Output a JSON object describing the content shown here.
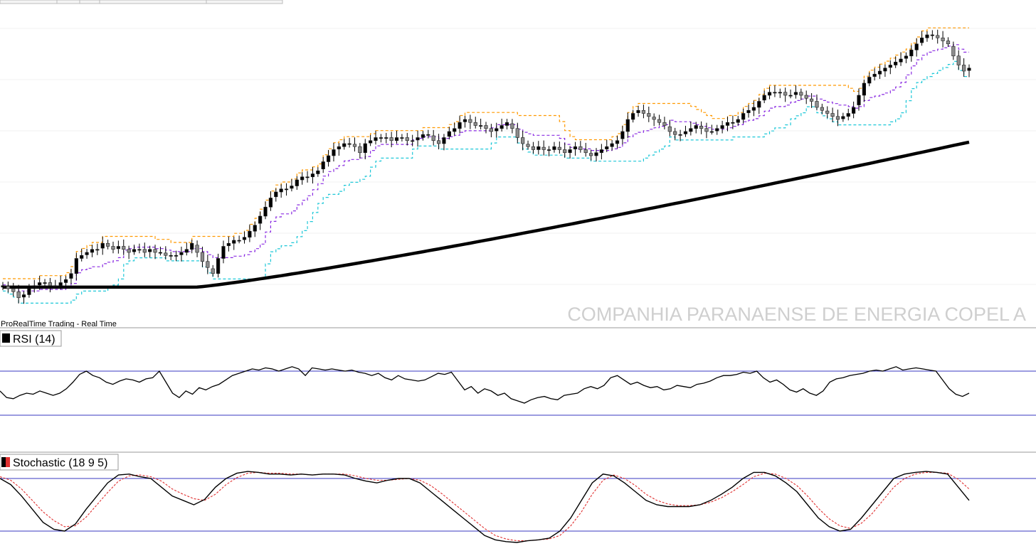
{
  "source_label": "ProRealTime Trading - Real Time",
  "watermark": "COMPANHIA PARANAENSE DE ENERGIA COPEL A",
  "colors": {
    "upper_band": "#ff9900",
    "middle_band": "#8a2be2",
    "lower_band": "#1ec8d8",
    "moving_average": "#000000",
    "candle_up": "#000000",
    "candle_down": "#8c8c8c",
    "rsi_line": "#000000",
    "stoch_k": "#000000",
    "stoch_d": "#e03030",
    "level_lines": "#3a3ac0"
  },
  "panels": {
    "rsi": {
      "label": "RSI (14)",
      "swatch": "#000000"
    },
    "stochastic": {
      "label": "Stochastic (18 9 5)",
      "swatch_k": "#000000",
      "swatch_d": "#e03030"
    }
  },
  "chart_data": [
    {
      "type": "candlestick",
      "title": "COMPANHIA PARANAENSE DE ENERGIA COPEL A",
      "ylim": [
        0,
        100
      ],
      "candles_close": [
        9,
        8,
        7,
        5,
        6,
        8,
        9,
        10,
        10,
        9,
        9,
        10,
        11,
        13,
        18,
        19,
        20,
        21,
        21,
        23,
        22,
        21,
        22,
        21,
        20,
        21,
        21,
        20,
        21,
        20,
        20,
        19,
        19,
        19,
        20,
        21,
        23,
        20,
        17,
        15,
        13,
        18,
        22,
        23,
        24,
        24,
        25,
        27,
        29,
        32,
        35,
        38,
        40,
        41,
        41,
        42,
        44,
        45,
        45,
        46,
        47,
        50,
        52,
        54,
        55,
        56,
        56,
        55,
        53,
        56,
        57,
        58,
        58,
        58,
        57,
        58,
        58,
        57,
        57,
        58,
        59,
        59,
        57,
        56,
        58,
        60,
        61,
        63,
        64,
        63,
        62,
        62,
        61,
        60,
        61,
        62,
        63,
        61,
        58,
        56,
        55,
        54,
        55,
        54,
        54,
        55,
        54,
        53,
        54,
        55,
        54,
        53,
        52,
        53,
        54,
        55,
        56,
        57,
        60,
        64,
        66,
        67,
        66,
        65,
        64,
        63,
        62,
        60,
        59,
        59,
        60,
        61,
        62,
        61,
        60,
        60,
        61,
        62,
        63,
        63,
        64,
        66,
        67,
        68,
        70,
        72,
        73,
        73,
        73,
        72,
        72,
        73,
        72,
        71,
        70,
        68,
        67,
        66,
        65,
        64,
        65,
        66,
        68,
        72,
        76,
        78,
        79,
        80,
        81,
        82,
        83,
        84,
        85,
        87,
        89,
        91,
        92,
        92,
        91,
        90,
        89,
        85,
        82,
        80,
        81
      ],
      "moving_average_start": 8.5,
      "moving_average_end": 56.5
    },
    {
      "type": "line",
      "title": "RSI (14)",
      "ylim": [
        0,
        100
      ],
      "levels": [
        70,
        30
      ],
      "values": [
        52,
        46,
        45,
        48,
        50,
        49,
        52,
        50,
        48,
        50,
        54,
        60,
        67,
        70,
        66,
        64,
        60,
        58,
        61,
        63,
        62,
        60,
        63,
        64,
        70,
        60,
        50,
        46,
        52,
        49,
        55,
        53,
        56,
        58,
        62,
        66,
        68,
        70,
        72,
        71,
        73,
        72,
        70,
        72,
        74,
        72,
        66,
        73,
        72,
        71,
        72,
        71,
        70,
        71,
        69,
        68,
        66,
        68,
        64,
        62,
        66,
        63,
        62,
        61,
        62,
        65,
        68,
        67,
        69,
        61,
        53,
        56,
        50,
        54,
        52,
        48,
        50,
        45,
        43,
        41,
        44,
        46,
        47,
        45,
        44,
        48,
        49,
        50,
        54,
        56,
        54,
        57,
        64,
        66,
        62,
        58,
        60,
        57,
        55,
        56,
        53,
        54,
        57,
        56,
        55,
        58,
        59,
        61,
        64,
        66,
        66,
        67,
        69,
        68,
        70,
        64,
        60,
        62,
        58,
        53,
        51,
        54,
        50,
        48,
        52,
        60,
        63,
        64,
        66,
        67,
        68,
        70,
        71,
        70,
        72,
        74,
        71,
        72,
        73,
        72,
        71,
        70,
        62,
        54,
        49,
        47,
        50
      ]
    },
    {
      "type": "line",
      "title": "Stochastic (18 9 5)",
      "ylim": [
        0,
        100
      ],
      "levels": [
        80,
        20
      ],
      "series": [
        {
          "values": [
            80,
            73,
            60,
            45,
            30,
            22,
            20,
            28,
            45,
            60,
            75,
            84,
            85,
            82,
            80,
            70,
            60,
            55,
            50,
            56,
            70,
            80,
            86,
            88,
            87,
            85,
            85,
            84,
            85,
            84,
            85,
            85,
            84,
            80,
            77,
            75,
            78,
            80,
            80,
            75,
            65,
            55,
            45,
            35,
            25,
            15,
            10,
            8,
            7,
            9,
            10,
            12,
            20,
            35,
            55,
            75,
            85,
            83,
            75,
            65,
            55,
            50,
            48,
            48,
            48,
            50,
            55,
            62,
            70,
            80,
            87,
            87,
            83,
            75,
            65,
            50,
            35,
            25,
            20,
            22,
            35,
            50,
            65,
            80,
            85,
            87,
            88,
            87,
            85,
            70,
            55
          ]
        },
        {
          "values": [
            82,
            78,
            68,
            55,
            42,
            32,
            25,
            26,
            36,
            50,
            64,
            77,
            83,
            84,
            82,
            77,
            68,
            62,
            57,
            55,
            62,
            73,
            81,
            86,
            87,
            86,
            86,
            85,
            85,
            84,
            85,
            85,
            85,
            83,
            80,
            78,
            78,
            79,
            80,
            78,
            72,
            63,
            53,
            43,
            33,
            23,
            15,
            11,
            9,
            9,
            10,
            11,
            15,
            26,
            42,
            62,
            78,
            84,
            80,
            72,
            62,
            55,
            51,
            49,
            49,
            50,
            53,
            58,
            65,
            73,
            82,
            86,
            85,
            80,
            72,
            60,
            46,
            34,
            26,
            23,
            29,
            40,
            55,
            70,
            80,
            85,
            87,
            87,
            86,
            79,
            68
          ]
        }
      ]
    }
  ]
}
